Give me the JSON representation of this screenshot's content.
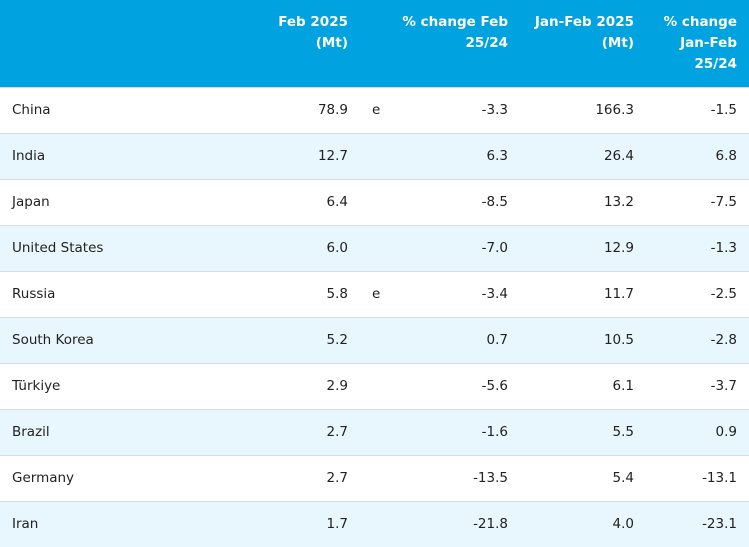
{
  "headers": {
    "country": "",
    "feb": "Feb 2025\n(Mt)",
    "flag": "",
    "feb_change": "% change Feb\n25/24",
    "janfeb": "Jan-Feb 2025\n(Mt)",
    "janfeb_change": "% change\nJan-Feb\n25/24"
  },
  "rows": [
    {
      "country": "China",
      "feb": "78.9",
      "flag": "e",
      "feb_change": "-3.3",
      "janfeb": "166.3",
      "janfeb_change": "-1.5"
    },
    {
      "country": "India",
      "feb": "12.7",
      "flag": "",
      "feb_change": "6.3",
      "janfeb": "26.4",
      "janfeb_change": "6.8"
    },
    {
      "country": "Japan",
      "feb": "6.4",
      "flag": "",
      "feb_change": "-8.5",
      "janfeb": "13.2",
      "janfeb_change": "-7.5"
    },
    {
      "country": "United States",
      "feb": "6.0",
      "flag": "",
      "feb_change": "-7.0",
      "janfeb": "12.9",
      "janfeb_change": "-1.3"
    },
    {
      "country": "Russia",
      "feb": "5.8",
      "flag": "e",
      "feb_change": "-3.4",
      "janfeb": "11.7",
      "janfeb_change": "-2.5"
    },
    {
      "country": "South Korea",
      "feb": "5.2",
      "flag": "",
      "feb_change": "0.7",
      "janfeb": "10.5",
      "janfeb_change": "-2.8"
    },
    {
      "country": "Türkiye",
      "feb": "2.9",
      "flag": "",
      "feb_change": "-5.6",
      "janfeb": "6.1",
      "janfeb_change": "-3.7"
    },
    {
      "country": "Brazil",
      "feb": "2.7",
      "flag": "",
      "feb_change": "-1.6",
      "janfeb": "5.5",
      "janfeb_change": "0.9"
    },
    {
      "country": "Germany",
      "feb": "2.7",
      "flag": "",
      "feb_change": "-13.5",
      "janfeb": "5.4",
      "janfeb_change": "-13.1"
    },
    {
      "country": "Iran",
      "feb": "1.7",
      "flag": "",
      "feb_change": "-21.8",
      "janfeb": "4.0",
      "janfeb_change": "-23.1"
    }
  ],
  "colors": {
    "header_bg": "#00a3e0",
    "header_text": "#ffffff",
    "stripe_bg": "#e8f6fd"
  }
}
